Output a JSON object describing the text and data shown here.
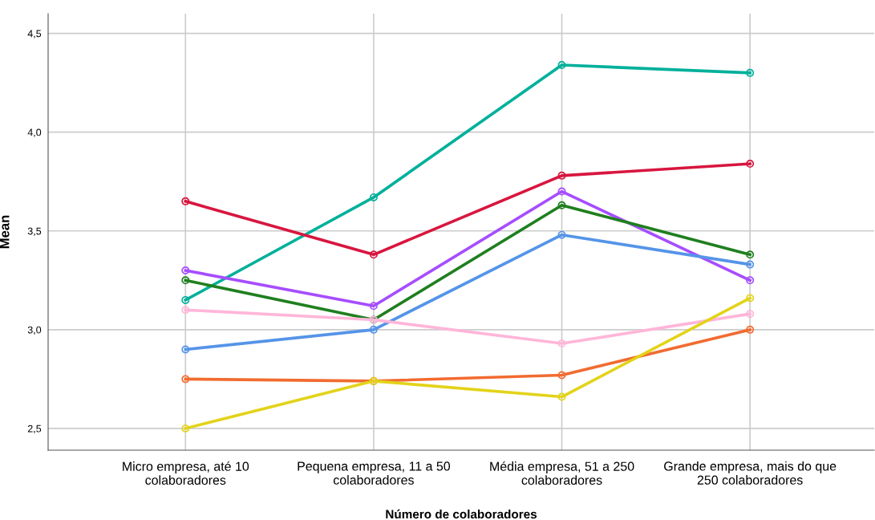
{
  "chart_data": {
    "type": "line",
    "xlabel": "Número de colaboradores",
    "ylabel": "Mean",
    "categories": [
      "Micro empresa, até 10\ncolaboradores",
      "Pequena empresa, 11 a 50\ncolaboradores",
      "Média empresa, 51 a 250\ncolaboradores",
      "Grande empresa, mais do que\n250 colaboradores"
    ],
    "series": [
      {
        "color": "#00b09b",
        "values": [
          3.15,
          3.67,
          4.34,
          4.3
        ]
      },
      {
        "color": "#d8163f",
        "values": [
          3.65,
          3.38,
          3.78,
          3.84
        ]
      },
      {
        "color": "#a64dff",
        "values": [
          3.3,
          3.12,
          3.7,
          3.25
        ]
      },
      {
        "color": "#1f7f1f",
        "values": [
          3.25,
          3.05,
          3.63,
          3.38
        ]
      },
      {
        "color": "#5594e8",
        "values": [
          2.9,
          3.0,
          3.48,
          3.33
        ]
      },
      {
        "color": "#ffb6d9",
        "values": [
          3.1,
          3.05,
          2.93,
          3.08
        ]
      },
      {
        "color": "#f26b30",
        "values": [
          2.75,
          2.74,
          2.77,
          3.0
        ]
      },
      {
        "color": "#e3d31a",
        "values": [
          2.5,
          2.74,
          2.66,
          3.16
        ]
      }
    ],
    "ylim": [
      2.39,
      4.6
    ],
    "yticks": [
      {
        "value": 2.5,
        "label": "2,5"
      },
      {
        "value": 3.0,
        "label": "3,0"
      },
      {
        "value": 3.5,
        "label": "3,5"
      },
      {
        "value": 4.0,
        "label": "4,0"
      },
      {
        "value": 4.5,
        "label": "4,5"
      }
    ],
    "grid": true,
    "legend": false,
    "marker": "circle",
    "line_style": "solid"
  }
}
